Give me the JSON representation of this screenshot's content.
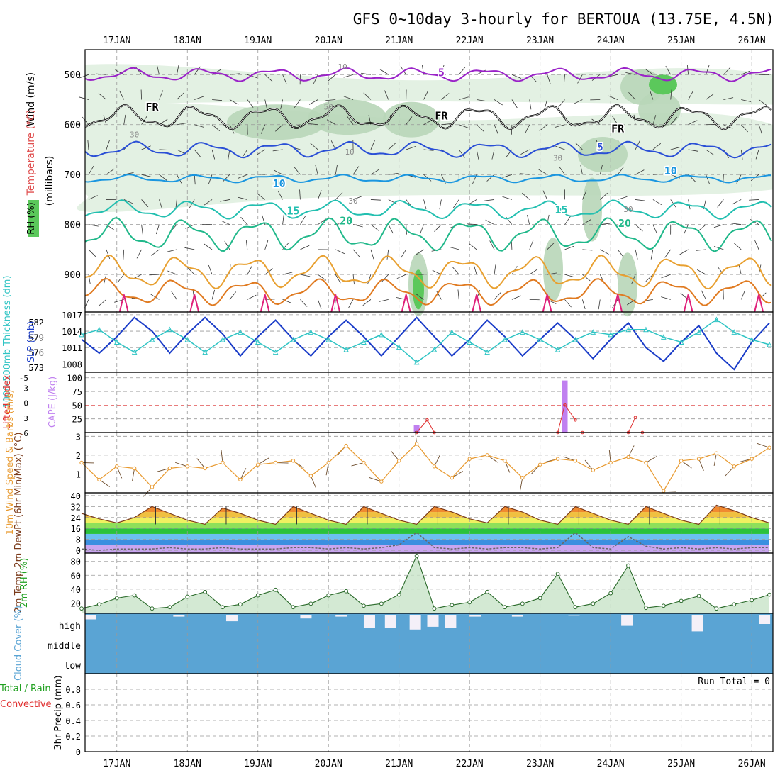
{
  "title": "GFS 0~10day 3-hourly for BERTOUA (13.75E, 4.5N)",
  "dates": [
    "17JAN",
    "18JAN",
    "19JAN",
    "20JAN",
    "21JAN",
    "22JAN",
    "23JAN",
    "24JAN",
    "25JAN",
    "26JAN"
  ],
  "colors": {
    "rh_light": "#e3f1e3",
    "rh_mid": "#b8d6b8",
    "rh_dark": "#8fb48f",
    "rh_green": "#5bc85b",
    "temp_purple": "#9a22c8",
    "temp_blue": "#2a4fd6",
    "temp_lightblue": "#1a96e0",
    "temp_teal": "#22bfb0",
    "temp_green": "#20b88a",
    "temp_orange": "#e8a030",
    "temp_darkorange": "#e07a20",
    "temp_magenta": "#e0207a",
    "slp": "#1a3cc8",
    "thickness": "#2ec4c4",
    "cape": "#c080f0",
    "li": "#e03030",
    "wind10m": "#e89a30",
    "rh2m": "#20a020",
    "cloud": "#5aa4d4"
  },
  "chart_data": [
    {
      "panel": "upper_air",
      "type": "contour",
      "ylabel": "(millibars)",
      "side_labels": {
        "wind": "Wind (m/s)",
        "temperature": "Temperature (°C)",
        "rh": "RH (%)"
      },
      "y_ticks": [
        500,
        600,
        700,
        800,
        900
      ],
      "ylim": [
        450,
        975
      ],
      "isotherm_labels": [
        {
          "text": "5",
          "day": 21.6,
          "p": 503
        },
        {
          "text": "FR",
          "day": 17.5,
          "p": 572
        },
        {
          "text": "FR",
          "day": 21.6,
          "p": 590
        },
        {
          "text": "FR",
          "day": 24.1,
          "p": 615
        },
        {
          "text": "5",
          "day": 23.85,
          "p": 652
        },
        {
          "text": "10",
          "day": 19.3,
          "p": 725
        },
        {
          "text": "10",
          "day": 24.85,
          "p": 700
        },
        {
          "text": "15",
          "day": 19.5,
          "p": 780
        },
        {
          "text": "15",
          "day": 23.3,
          "p": 778
        },
        {
          "text": "20",
          "day": 20.25,
          "p": 800
        },
        {
          "text": "20",
          "day": 24.2,
          "p": 805
        }
      ],
      "rh_labels": [
        {
          "text": "10",
          "day": 20.2,
          "p": 490
        },
        {
          "text": "30",
          "day": 17.25,
          "p": 625
        },
        {
          "text": "30",
          "day": 20.35,
          "p": 758
        },
        {
          "text": "30",
          "day": 23.25,
          "p": 672
        },
        {
          "text": "30",
          "day": 24.25,
          "p": 775
        },
        {
          "text": "10",
          "day": 20.3,
          "p": 660
        },
        {
          "text": "50",
          "day": 20.0,
          "p": 570
        }
      ]
    },
    {
      "panel": "pressure",
      "type": "line",
      "series": [
        {
          "name": "SLP (mb)",
          "axis": "right",
          "x": [
            16.5,
            16.75,
            17.0,
            17.25,
            17.5,
            17.75,
            18.0,
            18.25,
            18.5,
            18.75,
            19.0,
            19.25,
            19.5,
            19.75,
            20.0,
            20.25,
            20.5,
            20.75,
            21.0,
            21.25,
            21.5,
            21.75,
            22.0,
            22.25,
            22.5,
            22.75,
            23.0,
            23.25,
            23.5,
            23.75,
            24.0,
            24.25,
            24.5,
            24.75,
            25.0,
            25.25,
            25.5,
            25.75,
            26.0,
            26.25
          ],
          "values": [
            1012.5,
            1010.0,
            1013.0,
            1016.5,
            1014.0,
            1010.0,
            1013.5,
            1016.5,
            1013.5,
            1009.5,
            1013.0,
            1016.0,
            1012.5,
            1009.5,
            1013.0,
            1016.0,
            1013.0,
            1009.5,
            1013.0,
            1016.5,
            1013.0,
            1009.5,
            1012.5,
            1016.0,
            1013.0,
            1009.5,
            1012.5,
            1015.5,
            1012.5,
            1009.0,
            1012.5,
            1015.5,
            1011.0,
            1008.5,
            1012.0,
            1015.0,
            1010.0,
            1007.0,
            1012.0,
            1015.5
          ]
        },
        {
          "name": "1000-500mb Thickness (dm)",
          "axis": "left",
          "x": [
            16.5,
            16.75,
            17.0,
            17.25,
            17.5,
            17.75,
            18.0,
            18.25,
            18.5,
            18.75,
            19.0,
            19.25,
            19.5,
            19.75,
            20.0,
            20.25,
            20.5,
            20.75,
            21.0,
            21.25,
            21.5,
            21.75,
            22.0,
            22.25,
            22.5,
            22.75,
            23.0,
            23.25,
            23.5,
            23.75,
            24.0,
            24.25,
            24.5,
            24.75,
            25.0,
            25.25,
            25.5,
            25.75,
            26.0,
            26.25
          ],
          "values": [
            579.5,
            580.5,
            578.0,
            576.0,
            578.5,
            580.5,
            578.5,
            576.0,
            578.5,
            580.0,
            578.0,
            576.0,
            578.5,
            580.0,
            578.5,
            576.5,
            578.0,
            579.5,
            577.0,
            574.0,
            576.5,
            580.0,
            578.0,
            576.0,
            578.5,
            580.0,
            578.5,
            576.5,
            578.5,
            580.0,
            579.5,
            580.5,
            580.5,
            579.0,
            578.0,
            580.0,
            582.5,
            580.0,
            578.5,
            577.5
          ]
        }
      ],
      "ylabel_left": "1000-500mb Thickness (dm)",
      "ylabel_right": "SLP (mb)",
      "left_ticks": [
        573,
        576,
        579,
        582
      ],
      "right_ticks": [
        1008,
        1011,
        1014,
        1017
      ],
      "left_lim": [
        572,
        584
      ],
      "right_lim": [
        1006.5,
        1017.5
      ]
    },
    {
      "panel": "instability",
      "type": "bar",
      "ylabel_left": "Lifted Index",
      "ylabel_right": "CAPE (J/kg)",
      "li_ticks": [
        -5,
        -3,
        0,
        3,
        6
      ],
      "li_tick_labels": [
        "-5",
        "-3",
        "0",
        "3",
        "6"
      ],
      "cape_ticks": [
        25,
        50,
        75,
        100
      ],
      "cape_lim": [
        0,
        110
      ],
      "cape_x": [
        21.25,
        23.35
      ],
      "cape_values": [
        14,
        95
      ],
      "li_x": [
        21.25,
        21.4,
        21.5,
        23.25,
        23.35,
        23.5,
        23.6,
        24.25,
        24.35,
        24.45
      ],
      "li_values": [
        6.0,
        3.5,
        6.0,
        6.0,
        0.5,
        3.5,
        6.0,
        6.0,
        3.0,
        6.0
      ]
    },
    {
      "panel": "wind10m",
      "type": "line",
      "ylabel": "10m Wind Speed & Barbs (m/s)",
      "y_ticks": [
        1,
        2,
        3
      ],
      "ylim": [
        0,
        3.2
      ],
      "x": [
        16.5,
        16.75,
        17.0,
        17.25,
        17.5,
        17.75,
        18.0,
        18.25,
        18.5,
        18.75,
        19.0,
        19.25,
        19.5,
        19.75,
        20.0,
        20.25,
        20.5,
        20.75,
        21.0,
        21.25,
        21.5,
        21.75,
        22.0,
        22.25,
        22.5,
        22.75,
        23.0,
        23.25,
        23.5,
        23.75,
        24.0,
        24.25,
        24.5,
        24.75,
        25.0,
        25.25,
        25.5,
        25.75,
        26.0,
        26.25
      ],
      "values": [
        1.6,
        0.7,
        1.4,
        1.3,
        0.3,
        1.3,
        1.4,
        1.3,
        1.6,
        0.7,
        1.5,
        1.6,
        1.7,
        0.9,
        1.6,
        2.5,
        1.6,
        0.6,
        1.7,
        2.6,
        1.4,
        0.8,
        1.8,
        2.0,
        1.7,
        0.8,
        1.5,
        1.8,
        1.7,
        1.2,
        1.6,
        1.9,
        1.6,
        0.1,
        1.7,
        1.8,
        2.1,
        1.4,
        1.8,
        2.4
      ]
    },
    {
      "panel": "temperature2m",
      "type": "area",
      "ylabel": "2m Temp 2m DewPt (6hr Min/Max) (°C)",
      "y_ticks": [
        0,
        8,
        16,
        24,
        32,
        40
      ],
      "ylim": [
        -2,
        42
      ],
      "x": [
        16.5,
        16.75,
        17.0,
        17.25,
        17.5,
        17.75,
        18.0,
        18.25,
        18.5,
        18.75,
        19.0,
        19.25,
        19.5,
        19.75,
        20.0,
        20.25,
        20.5,
        20.75,
        21.0,
        21.25,
        21.5,
        21.75,
        22.0,
        22.25,
        22.5,
        22.75,
        23.0,
        23.25,
        23.5,
        23.75,
        24.0,
        24.25,
        24.5,
        24.75,
        25.0,
        25.25,
        25.5,
        25.75,
        26.0,
        26.25
      ],
      "temp": [
        27,
        23,
        20,
        24,
        32,
        27,
        22,
        19,
        31,
        27,
        22,
        19,
        32,
        27,
        22,
        19,
        32,
        27,
        22,
        19,
        32,
        28,
        23,
        20,
        32,
        28,
        22,
        19,
        32,
        27,
        22,
        19,
        32,
        27,
        22,
        19,
        33,
        29,
        24,
        20
      ],
      "dewpt": [
        1,
        0,
        1,
        1,
        1,
        2,
        1,
        1,
        2,
        1,
        1,
        1,
        2,
        2,
        1,
        2,
        1,
        2,
        4,
        13,
        2,
        1,
        2,
        1,
        2,
        2,
        1,
        2,
        13,
        2,
        1,
        10,
        3,
        1,
        2,
        1,
        2,
        1,
        2,
        2
      ]
    },
    {
      "panel": "rh2m",
      "type": "area",
      "ylabel": "2m RH (%)",
      "y_ticks": [
        20,
        40,
        60,
        80
      ],
      "ylim": [
        5,
        92
      ],
      "x": [
        16.5,
        16.75,
        17.0,
        17.25,
        17.5,
        17.75,
        18.0,
        18.25,
        18.5,
        18.75,
        19.0,
        19.25,
        19.5,
        19.75,
        20.0,
        20.25,
        20.5,
        20.75,
        21.0,
        21.25,
        21.5,
        21.75,
        22.0,
        22.25,
        22.5,
        22.75,
        23.0,
        23.25,
        23.5,
        23.75,
        24.0,
        24.25,
        24.5,
        24.75,
        25.0,
        25.25,
        25.5,
        25.75,
        26.0,
        26.25
      ],
      "values": [
        12,
        18,
        27,
        31,
        12,
        14,
        29,
        36,
        14,
        18,
        31,
        39,
        14,
        19,
        31,
        37,
        16,
        19,
        32,
        88,
        12,
        17,
        21,
        36,
        14,
        19,
        27,
        62,
        14,
        19,
        34,
        74,
        13,
        16,
        23,
        30,
        12,
        18,
        24,
        32
      ]
    },
    {
      "panel": "clouds",
      "type": "bar",
      "ylabel": "Cloud Cover (%)",
      "levels": [
        "high",
        "middle",
        "low"
      ],
      "high_x": [
        16.55,
        17.8,
        18.55,
        19.6,
        20.1,
        20.5,
        20.8,
        21.15,
        21.4,
        21.65,
        22.0,
        22.6,
        23.4,
        24.15,
        25.15,
        26.1
      ],
      "high_values": [
        25,
        10,
        35,
        20,
        10,
        70,
        70,
        80,
        65,
        70,
        10,
        10,
        5,
        60,
        90,
        50
      ]
    },
    {
      "panel": "precip",
      "type": "bar",
      "ylabel": "3hr Precip (mm)",
      "side_labels": {
        "total": "Total / Rain",
        "convective": "Convective"
      },
      "y_ticks": [
        0,
        0.2,
        0.4,
        0.6,
        0.8
      ],
      "y_tick_labels": [
        "0",
        "0.2",
        "0.4",
        "0.6",
        "0.8"
      ],
      "ylim": [
        0,
        1
      ],
      "run_total": "Run Total = 0",
      "values": []
    }
  ]
}
